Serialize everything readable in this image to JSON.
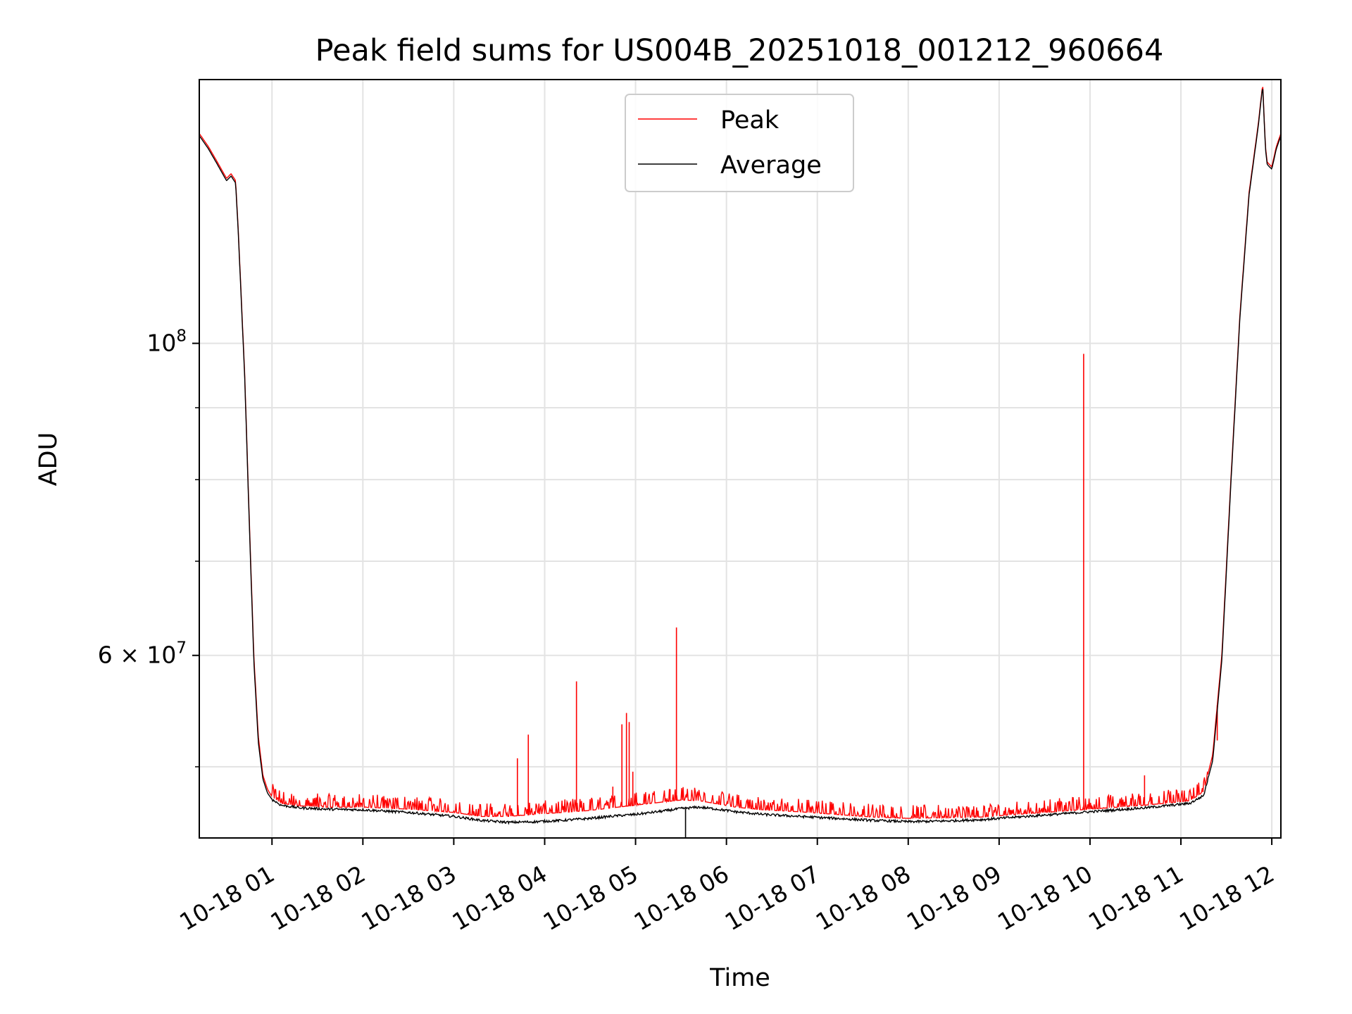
{
  "chart_data": {
    "type": "line",
    "title": "Peak field sums for US004B_20251018_001212_960664",
    "xlabel": "Time",
    "ylabel": "ADU",
    "yscale": "log",
    "xlim_hours": [
      0.2,
      12.1
    ],
    "ylim": [
      44500000,
      154000000
    ],
    "grid": true,
    "legend_position": "upper-center",
    "x_ticks": [
      {
        "hour": 1,
        "label": "10-18 01"
      },
      {
        "hour": 2,
        "label": "10-18 02"
      },
      {
        "hour": 3,
        "label": "10-18 03"
      },
      {
        "hour": 4,
        "label": "10-18 04"
      },
      {
        "hour": 5,
        "label": "10-18 05"
      },
      {
        "hour": 6,
        "label": "10-18 06"
      },
      {
        "hour": 7,
        "label": "10-18 07"
      },
      {
        "hour": 8,
        "label": "10-18 08"
      },
      {
        "hour": 9,
        "label": "10-18 09"
      },
      {
        "hour": 10,
        "label": "10-18 10"
      },
      {
        "hour": 11,
        "label": "10-18 11"
      },
      {
        "hour": 12,
        "label": "10-18 12"
      }
    ],
    "y_major_ticks": [
      {
        "value": 100000000,
        "base": "10",
        "exp": "8"
      },
      {
        "value": 60000000,
        "base": "6 × 10",
        "exp": "7"
      }
    ],
    "y_minor_ticks": [
      50000000,
      70000000,
      80000000,
      90000000
    ],
    "series": [
      {
        "name": "Peak",
        "color": "#ff0000",
        "x": [
          0.2,
          0.3,
          0.4,
          0.5,
          0.55,
          0.6,
          0.63,
          0.7,
          0.75,
          0.8,
          0.85,
          0.9,
          0.95,
          1.0,
          1.1,
          1.3,
          1.6,
          2.0,
          2.5,
          3.0,
          3.3,
          3.6,
          3.9,
          4.2,
          4.5,
          4.8,
          5.0,
          5.3,
          5.5,
          5.7,
          5.9,
          6.1,
          6.4,
          6.8,
          7.2,
          7.6,
          8.0,
          8.4,
          8.8,
          9.2,
          9.6,
          10.0,
          10.3,
          10.6,
          10.9,
          11.1,
          11.25,
          11.35,
          11.45,
          11.55,
          11.65,
          11.75,
          11.85,
          11.9,
          11.93,
          11.95,
          12.0,
          12.05,
          12.1
        ],
        "y": [
          141000000,
          138000000,
          134500000,
          131000000,
          132000000,
          130500000,
          120000000,
          95000000,
          75000000,
          60000000,
          52500000,
          49300000,
          48200000,
          47600000,
          47100000,
          46900000,
          46800000,
          46800000,
          46650000,
          46400000,
          46100000,
          46100000,
          46250000,
          46400000,
          46550000,
          46800000,
          46950000,
          47200000,
          47350000,
          47300000,
          47050000,
          46800000,
          46600000,
          46450000,
          46250000,
          46050000,
          45950000,
          46000000,
          46050000,
          46250000,
          46450000,
          46650000,
          46800000,
          46950000,
          47150000,
          47300000,
          48000000,
          51000000,
          60000000,
          80000000,
          105000000,
          128000000,
          143000000,
          153000000,
          138000000,
          134500000,
          133500000,
          138000000,
          141000000
        ]
      },
      {
        "name": "Average",
        "color": "#000000",
        "x": [
          0.2,
          0.3,
          0.4,
          0.5,
          0.55,
          0.6,
          0.63,
          0.7,
          0.75,
          0.8,
          0.85,
          0.9,
          0.95,
          1.0,
          1.1,
          1.3,
          1.6,
          2.0,
          2.5,
          3.0,
          3.3,
          3.6,
          3.9,
          4.2,
          4.5,
          4.8,
          5.0,
          5.3,
          5.5,
          5.7,
          5.9,
          6.1,
          6.4,
          6.8,
          7.2,
          7.6,
          8.0,
          8.4,
          8.8,
          9.2,
          9.6,
          10.0,
          10.3,
          10.6,
          10.9,
          11.1,
          11.25,
          11.35,
          11.45,
          11.55,
          11.65,
          11.75,
          11.85,
          11.9,
          11.93,
          11.95,
          12.0,
          12.05,
          12.1
        ],
        "y": [
          140500000,
          137500000,
          134000000,
          130500000,
          131500000,
          130000000,
          119500000,
          94500000,
          74500000,
          59500000,
          52000000,
          49000000,
          47900000,
          47400000,
          46950000,
          46750000,
          46650000,
          46600000,
          46400000,
          46100000,
          45800000,
          45650000,
          45700000,
          45800000,
          45950000,
          46150000,
          46250000,
          46500000,
          46700000,
          46800000,
          46650000,
          46450000,
          46250000,
          46100000,
          45950000,
          45800000,
          45700000,
          45750000,
          45850000,
          46050000,
          46250000,
          46450000,
          46600000,
          46750000,
          46950000,
          47100000,
          47700000,
          50500000,
          59500000,
          79500000,
          104500000,
          127500000,
          142500000,
          152500000,
          137500000,
          134000000,
          133000000,
          137500000,
          140500000
        ]
      }
    ],
    "peak_spikes": [
      {
        "x": 3.7,
        "y": 50700000
      },
      {
        "x": 3.82,
        "y": 52700000
      },
      {
        "x": 4.35,
        "y": 57500000
      },
      {
        "x": 4.75,
        "y": 48400000
      },
      {
        "x": 4.85,
        "y": 53600000
      },
      {
        "x": 4.9,
        "y": 54600000
      },
      {
        "x": 4.93,
        "y": 53800000
      },
      {
        "x": 4.97,
        "y": 49600000
      },
      {
        "x": 5.38,
        "y": 48200000
      },
      {
        "x": 5.45,
        "y": 62800000
      },
      {
        "x": 9.93,
        "y": 98300000
      },
      {
        "x": 10.6,
        "y": 49300000
      },
      {
        "x": 11.4,
        "y": 52200000
      }
    ],
    "average_dips": [
      {
        "x": 5.55,
        "y": 44500000
      }
    ]
  }
}
